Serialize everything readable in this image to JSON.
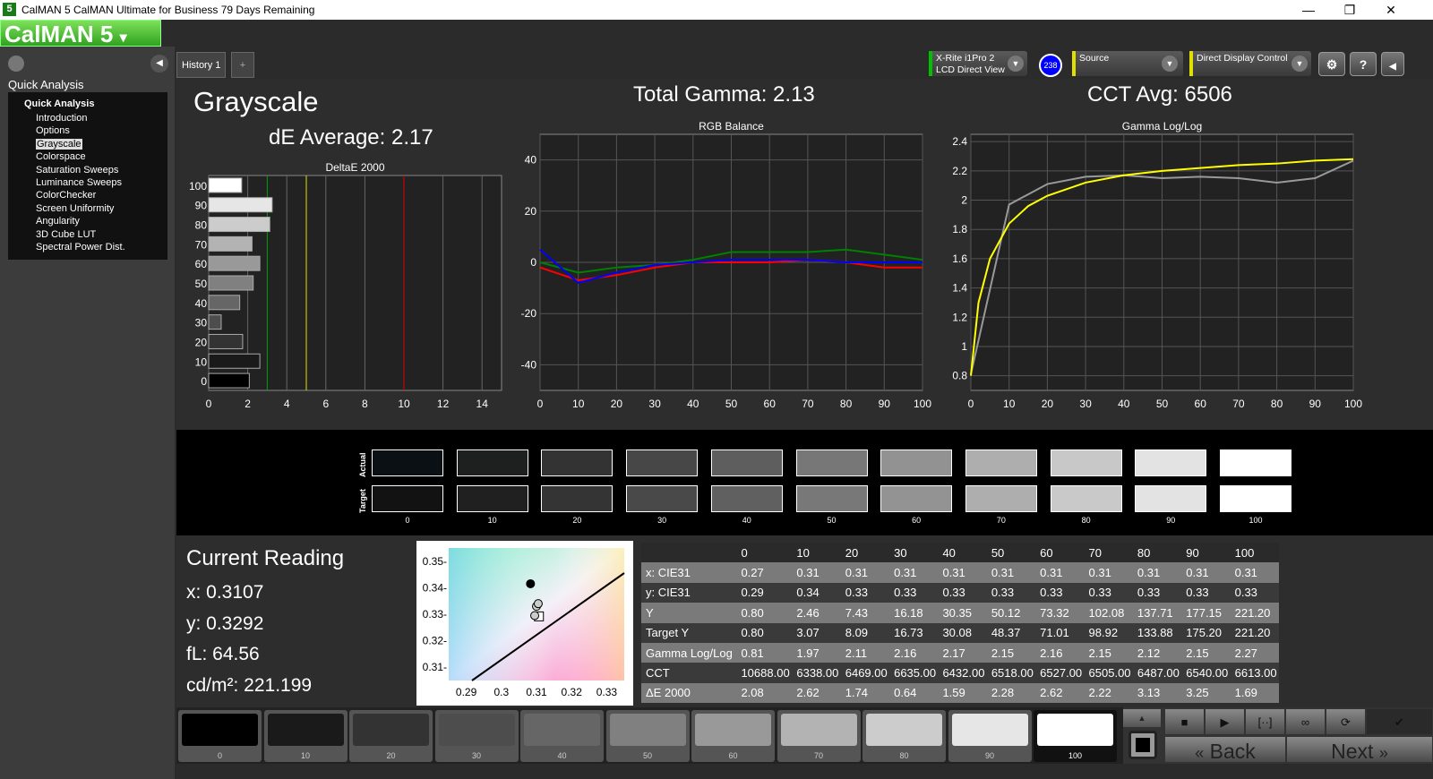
{
  "window": {
    "title": "CalMAN 5 CalMAN Ultimate for Business 79 Days Remaining",
    "app_icon": "5",
    "minimize": "—",
    "maximize": "❐",
    "close": "✕"
  },
  "logo": "CalMAN 5",
  "left_panel": {
    "title": "Quick Analysis",
    "tree_root": "Quick Analysis",
    "items": [
      "Introduction",
      "Options",
      "Grayscale",
      "Colorspace",
      "Saturation Sweeps",
      "Luminance Sweeps",
      "ColorChecker",
      "Screen Uniformity",
      "Angularity",
      "3D Cube LUT",
      "Spectral Power Dist."
    ],
    "selected": "Grayscale"
  },
  "tabs": [
    {
      "label": "History 1"
    },
    {
      "label": "+"
    }
  ],
  "toolbar": {
    "meter_line1": "X-Rite i1Pro 2",
    "meter_line2": "LCD Direct View",
    "meter_badge": "238",
    "source": "Source",
    "display": "Direct Display Control",
    "colors": {
      "meter": "#00c000",
      "source": "#e0e000",
      "display": "#e0e000",
      "badge": "#0000ff"
    }
  },
  "summary": {
    "page_title": "Grayscale",
    "de_average": "dE Average: 2.17",
    "total_gamma": "Total Gamma: 2.13",
    "cct_avg": "CCT Avg: 6506"
  },
  "chart_data": [
    {
      "type": "bar",
      "orientation": "horizontal",
      "title": "DeltaE 2000",
      "categories": [
        "0",
        "10",
        "20",
        "30",
        "40",
        "50",
        "60",
        "70",
        "80",
        "90",
        "100"
      ],
      "values": [
        2.08,
        2.62,
        1.74,
        0.64,
        1.59,
        2.28,
        2.62,
        2.22,
        3.13,
        3.25,
        1.69
      ],
      "xlim": [
        0,
        15
      ],
      "xticks": [
        0,
        2,
        4,
        6,
        8,
        10,
        12,
        14
      ],
      "thresholds": [
        {
          "value": 3,
          "color": "#00a000"
        },
        {
          "value": 5,
          "color": "#e0e000"
        },
        {
          "value": 10,
          "color": "#e00000"
        }
      ],
      "grid": true
    },
    {
      "type": "line",
      "title": "RGB Balance",
      "x": [
        0,
        10,
        20,
        30,
        40,
        50,
        60,
        70,
        80,
        90,
        100
      ],
      "xlim": [
        0,
        100
      ],
      "ylim": [
        -50,
        50
      ],
      "xticks": [
        0,
        10,
        20,
        30,
        40,
        50,
        60,
        70,
        80,
        90,
        100
      ],
      "yticks": [
        40,
        20,
        0,
        -20,
        -40
      ],
      "grid": true,
      "series": [
        {
          "color": "#ff0000",
          "values": [
            -2,
            -7,
            -5,
            -2,
            0,
            0,
            0,
            1,
            0,
            -2,
            -2
          ]
        },
        {
          "color": "#008000",
          "values": [
            0,
            -4,
            -2,
            -1,
            1,
            4,
            4,
            4,
            5,
            3,
            1
          ]
        },
        {
          "color": "#0000ff",
          "values": [
            5,
            -8,
            -4,
            -1,
            0,
            1,
            1,
            1,
            0,
            0,
            0
          ]
        }
      ]
    },
    {
      "type": "line",
      "title": "Gamma Log/Log",
      "xlim": [
        0,
        100
      ],
      "ylim": [
        0.7,
        2.45
      ],
      "xticks": [
        0,
        10,
        20,
        30,
        40,
        50,
        60,
        70,
        80,
        90,
        100
      ],
      "yticks": [
        2.4,
        2.2,
        2,
        1.8,
        1.6,
        1.4,
        1.2,
        1,
        0.8
      ],
      "grid": true,
      "series": [
        {
          "color": "#999999",
          "x": [
            0,
            10,
            20,
            30,
            40,
            50,
            60,
            70,
            80,
            90,
            100
          ],
          "values": [
            0.81,
            1.97,
            2.11,
            2.16,
            2.17,
            2.15,
            2.16,
            2.15,
            2.12,
            2.15,
            2.27
          ]
        },
        {
          "color": "#ffff00",
          "x": [
            0,
            2,
            5,
            10,
            15,
            20,
            30,
            40,
            50,
            60,
            70,
            80,
            90,
            100
          ],
          "values": [
            0.8,
            1.3,
            1.6,
            1.84,
            1.96,
            2.03,
            2.12,
            2.17,
            2.2,
            2.22,
            2.24,
            2.25,
            2.27,
            2.28
          ]
        }
      ]
    },
    {
      "type": "scatter",
      "title": "",
      "xlim": [
        0.285,
        0.335
      ],
      "ylim": [
        0.305,
        0.355
      ],
      "xticks": [
        "0.29",
        "0.3",
        "0.31",
        "0.32",
        "0.33"
      ],
      "yticks": [
        "0.35-",
        "0.34-",
        "0.33-",
        "0.32-",
        "0.31-"
      ],
      "points": [
        {
          "x": 0.3107,
          "y": 0.3292,
          "marker": "square"
        },
        {
          "x": 0.31,
          "y": 0.333
        },
        {
          "x": 0.3105,
          "y": 0.334
        },
        {
          "x": 0.3095,
          "y": 0.3295
        },
        {
          "x": 0.3083,
          "y": 0.3415
        }
      ]
    }
  ],
  "swatches": {
    "actual_label": "Actual",
    "target_label": "Target",
    "levels": [
      "0",
      "10",
      "20",
      "30",
      "40",
      "50",
      "60",
      "70",
      "80",
      "90",
      "100"
    ],
    "actual": [
      "#0b1014",
      "#1e1f1f",
      "#333333",
      "#474747",
      "#5e5e5e",
      "#777777",
      "#929292",
      "#aeaeae",
      "#c8c8c8",
      "#e3e3e3",
      "#ffffff"
    ],
    "target": [
      "#121212",
      "#202020",
      "#343434",
      "#494949",
      "#606060",
      "#787878",
      "#939393",
      "#aeaeae",
      "#c9c9c9",
      "#e3e3e3",
      "#ffffff"
    ]
  },
  "current_reading": {
    "title": "Current Reading",
    "x": "x: 0.3107",
    "y": "y: 0.3292",
    "fl": "fL: 64.56",
    "cdm2": "cd/m²: 221.199"
  },
  "table": {
    "columns": [
      "",
      "0",
      "10",
      "20",
      "30",
      "40",
      "50",
      "60",
      "70",
      "80",
      "90",
      "100"
    ],
    "rows": [
      [
        "x: CIE31",
        "0.27",
        "0.31",
        "0.31",
        "0.31",
        "0.31",
        "0.31",
        "0.31",
        "0.31",
        "0.31",
        "0.31",
        "0.31"
      ],
      [
        "y: CIE31",
        "0.29",
        "0.34",
        "0.33",
        "0.33",
        "0.33",
        "0.33",
        "0.33",
        "0.33",
        "0.33",
        "0.33",
        "0.33"
      ],
      [
        "Y",
        "0.80",
        "2.46",
        "7.43",
        "16.18",
        "30.35",
        "50.12",
        "73.32",
        "102.08",
        "137.71",
        "177.15",
        "221.20"
      ],
      [
        "Target Y",
        "0.80",
        "3.07",
        "8.09",
        "16.73",
        "30.08",
        "48.37",
        "71.01",
        "98.92",
        "133.88",
        "175.20",
        "221.20"
      ],
      [
        "Gamma Log/Log",
        "0.81",
        "1.97",
        "2.11",
        "2.16",
        "2.17",
        "2.15",
        "2.16",
        "2.15",
        "2.12",
        "2.15",
        "2.27"
      ],
      [
        "CCT",
        "10688.00",
        "6338.00",
        "6469.00",
        "6635.00",
        "6432.00",
        "6518.00",
        "6527.00",
        "6505.00",
        "6487.00",
        "6540.00",
        "6613.00"
      ],
      [
        "ΔE 2000",
        "2.08",
        "2.62",
        "1.74",
        "0.64",
        "1.59",
        "2.28",
        "2.62",
        "2.22",
        "3.13",
        "3.25",
        "1.69"
      ]
    ]
  },
  "patches": {
    "levels": [
      "0",
      "10",
      "20",
      "30",
      "40",
      "50",
      "60",
      "70",
      "80",
      "90",
      "100"
    ],
    "colors": [
      "#000000",
      "#1a1a1a",
      "#333333",
      "#4d4d4d",
      "#666666",
      "#808080",
      "#999999",
      "#b3b3b3",
      "#cccccc",
      "#e6e6e6",
      "#ffffff"
    ],
    "selected": "100"
  },
  "controls": {
    "stop": "■",
    "play": "▶",
    "range": "[··]",
    "loop": "∞",
    "refresh": "⟳",
    "check": "✔",
    "back": "Back",
    "next": "Next",
    "back_icon": "«",
    "next_icon": "»"
  }
}
